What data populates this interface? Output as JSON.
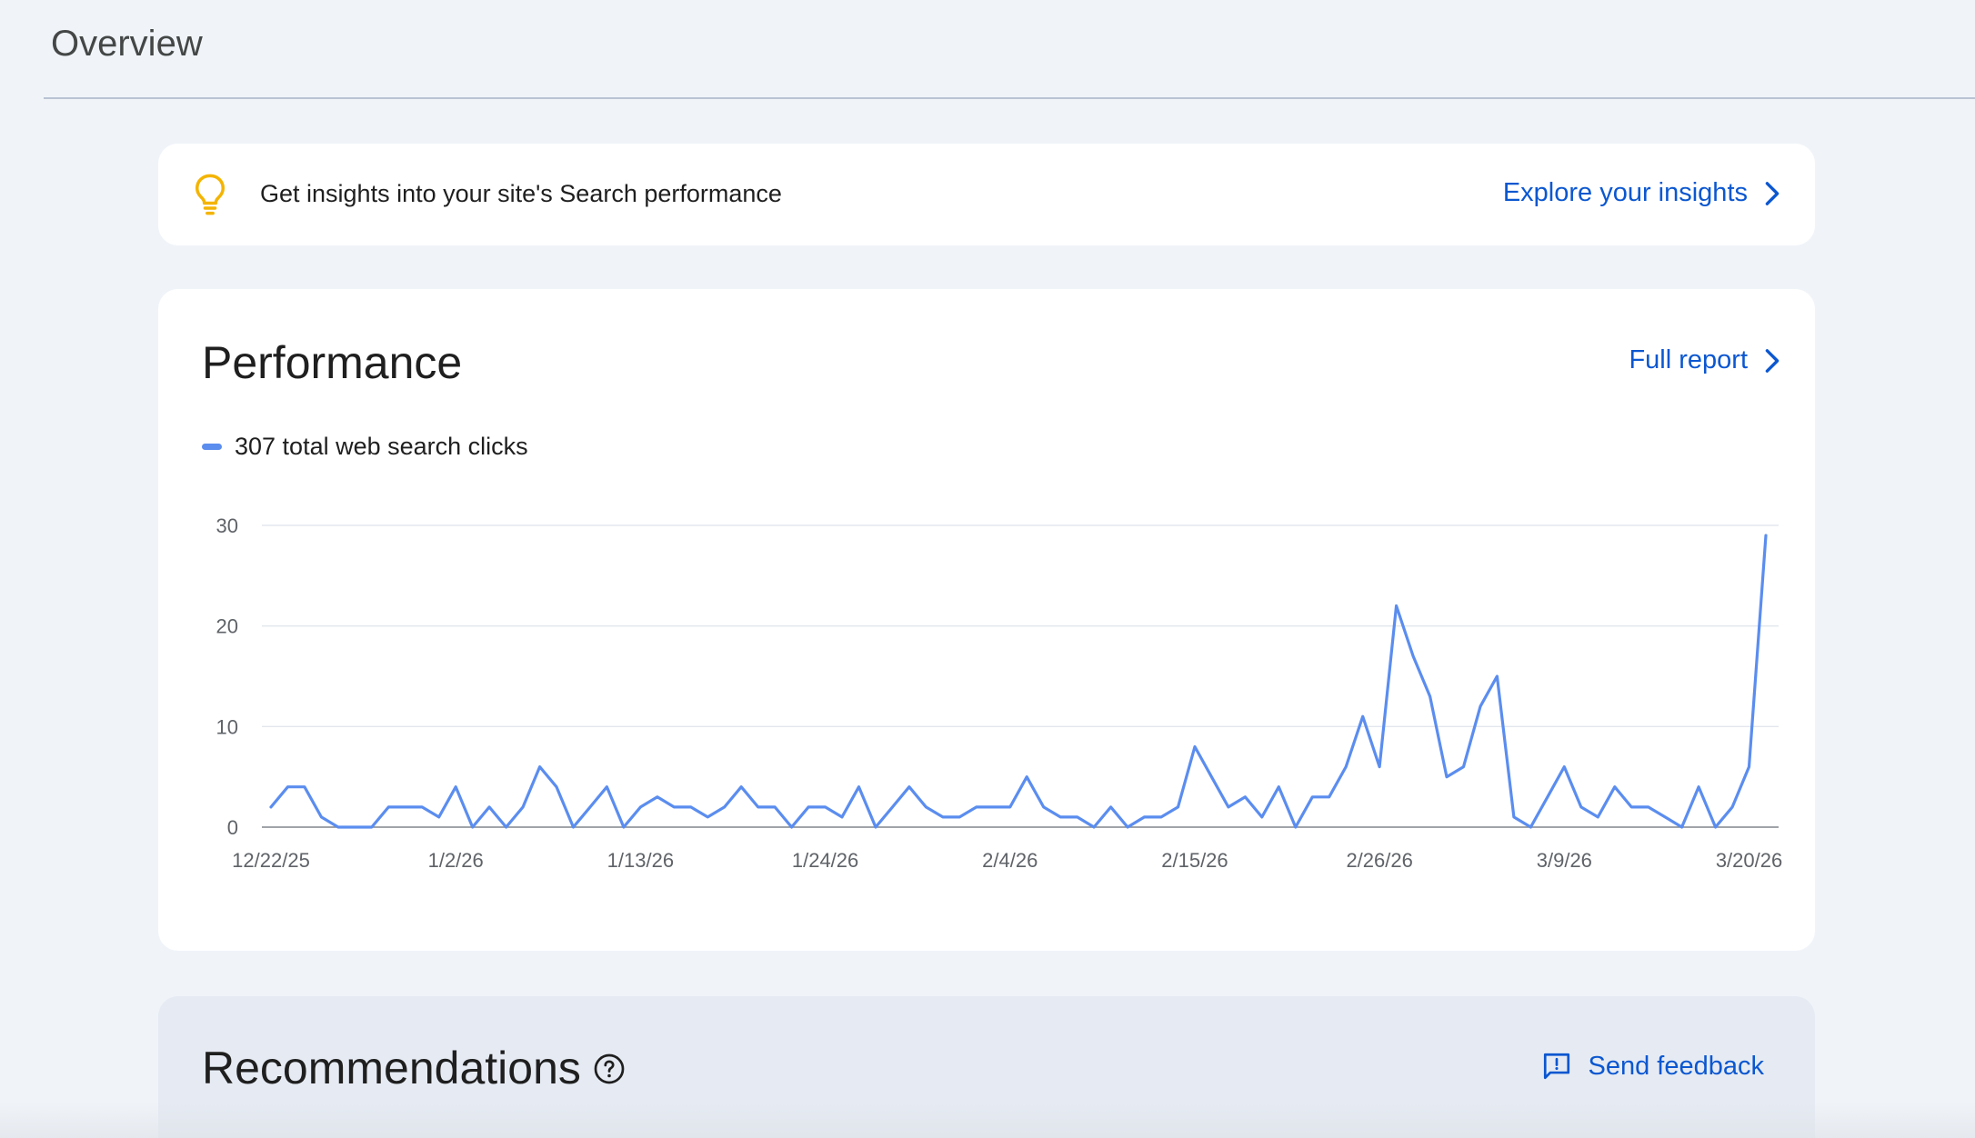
{
  "header": {
    "title": "Overview"
  },
  "insights": {
    "icon": "lightbulb-icon",
    "text": "Get insights into your site's Search performance",
    "link_label": "Explore your insights",
    "accent_color": "#f4b400"
  },
  "performance": {
    "title": "Performance",
    "link_label": "Full report",
    "legend_label": "307 total web search clicks",
    "series_color": "#5b8def"
  },
  "recommendations": {
    "title": "Recommendations",
    "help_icon": "help-circle-icon",
    "feedback_icon": "feedback-icon",
    "feedback_label": "Send feedback"
  },
  "colors": {
    "link": "#0b57d0",
    "background": "#f0f4f9"
  },
  "chart_data": {
    "type": "line",
    "ylim": [
      0,
      30
    ],
    "yticks": [
      "0",
      "10",
      "20",
      "30"
    ],
    "xtick_labels": [
      "12/22/25",
      "1/2/26",
      "1/13/26",
      "1/24/26",
      "2/4/26",
      "2/15/26",
      "2/26/26",
      "3/9/26",
      "3/20/26"
    ],
    "x_start": "12/22/25",
    "x_end": "3/21/26",
    "grid": true,
    "series": [
      {
        "values": [
          2,
          4,
          4,
          1,
          0,
          0,
          0,
          2,
          2,
          2,
          1,
          4,
          0,
          2,
          0,
          2,
          6,
          4,
          0,
          2,
          4,
          0,
          2,
          3,
          2,
          2,
          1,
          2,
          4,
          2,
          2,
          0,
          2,
          2,
          1,
          4,
          0,
          2,
          4,
          2,
          1,
          1,
          2,
          2,
          2,
          5,
          2,
          1,
          1,
          0,
          2,
          0,
          1,
          1,
          2,
          8,
          5,
          2,
          3,
          1,
          4,
          0,
          3,
          3,
          6,
          11,
          6,
          22,
          17,
          13,
          5,
          6,
          12,
          15,
          1,
          0,
          3,
          6,
          2,
          1,
          4,
          2,
          2,
          1,
          0,
          4,
          0,
          2,
          6,
          29
        ]
      }
    ]
  }
}
